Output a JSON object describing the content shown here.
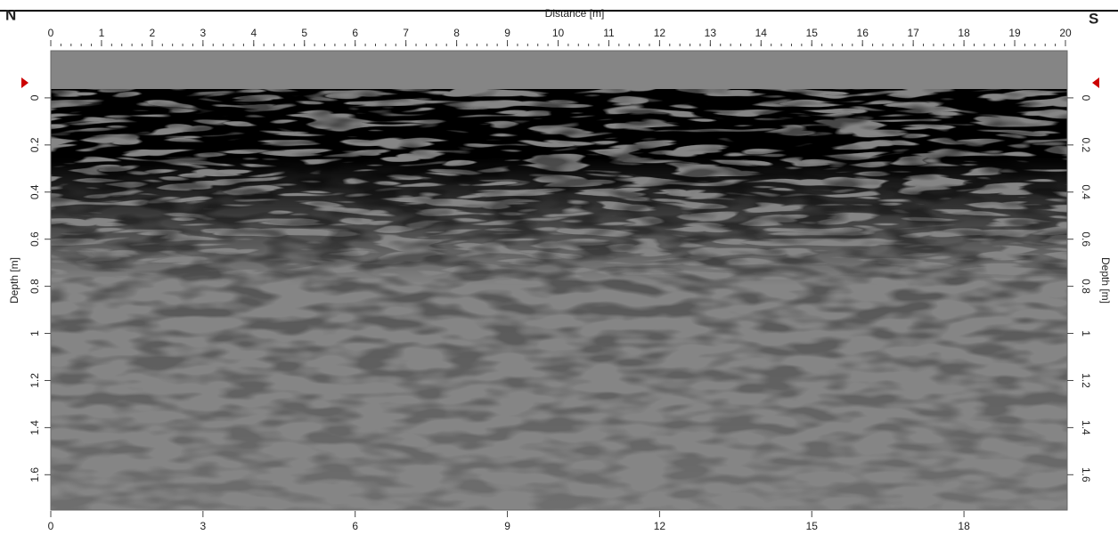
{
  "chart_data": {
    "type": "heatmap",
    "left_label": "N",
    "right_label": "S",
    "xlabel": "Distance [m]",
    "ylabel": "Depth [m]",
    "xlim": [
      0,
      20
    ],
    "xticks": [
      0,
      1,
      2,
      3,
      4,
      5,
      6,
      7,
      8,
      9,
      10,
      11,
      12,
      13,
      14,
      15,
      16,
      17,
      18,
      19,
      20
    ],
    "x2ticks": [
      0,
      3,
      6,
      9,
      12,
      15,
      18
    ],
    "ylim": [
      -0.2,
      1.75
    ],
    "yticks": [
      0,
      0.2,
      0.4,
      0.6,
      0.8,
      1,
      1.2,
      1.4,
      1.6
    ]
  }
}
